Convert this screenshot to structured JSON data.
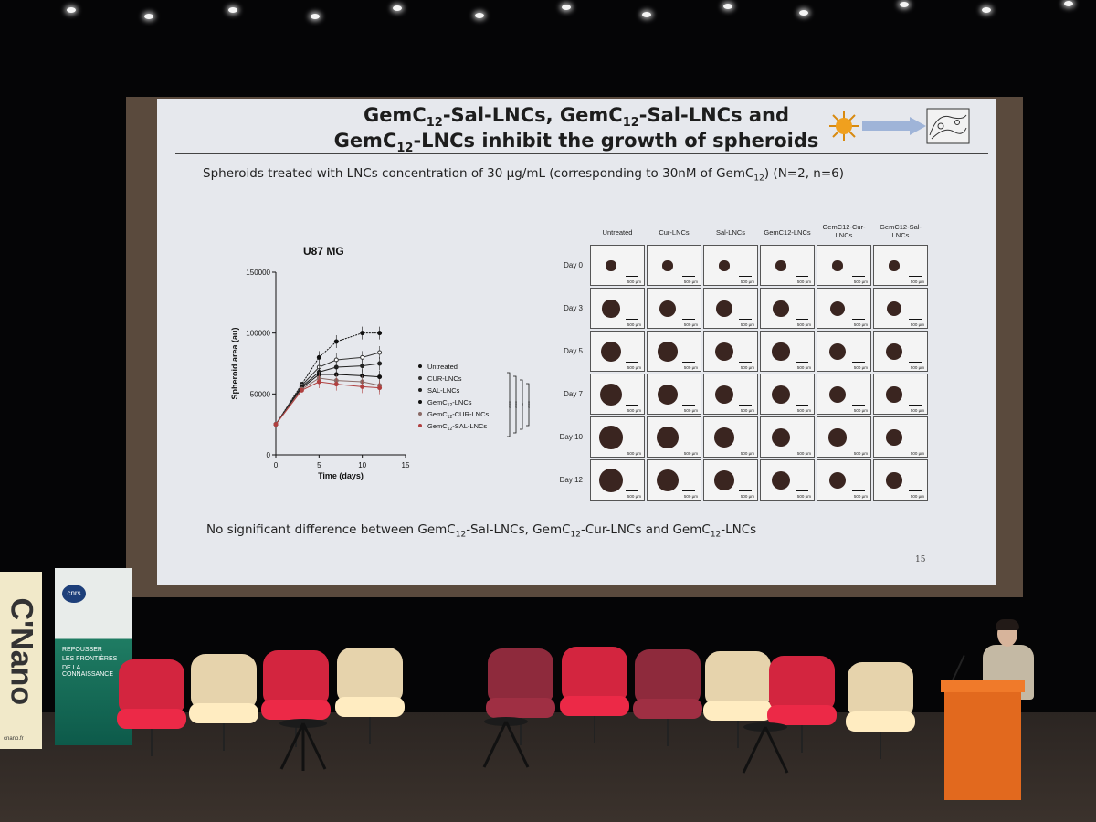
{
  "slide": {
    "title_line1_part1": "GemC",
    "title_line1_sub1": "12",
    "title_line1_part2": "-Sal-LNCs, GemC",
    "title_line1_sub2": "12",
    "title_line1_part3": "-Sal-LNCs and",
    "title_line2_part1": "GemC",
    "title_line2_sub1": "12",
    "title_line2_part2": "-LNCs inhibit the growth of spheroids",
    "subtitle_part1": "Spheroids treated with LNCs concentration of 30 µg/mL (corresponding to 30nM of GemC",
    "subtitle_sub": "12",
    "subtitle_part2": ") (N=2, n=6)",
    "footnote_p1": "No significant difference between GemC",
    "footnote_s1": "12",
    "footnote_p2": "-Sal-LNCs, GemC",
    "footnote_s2": "12",
    "footnote_p3": "-Cur-LNCs and GemC",
    "footnote_s3": "12",
    "footnote_p4": "-LNCs",
    "page_number": "15"
  },
  "chart_data": {
    "type": "line",
    "title": "U87 MG",
    "xlabel": "Time (days)",
    "ylabel": "Spheroid area (au)",
    "xlim": [
      0,
      15
    ],
    "ylim": [
      0,
      150000
    ],
    "x_ticks": [
      "0",
      "5",
      "10",
      "15"
    ],
    "y_ticks": [
      "0",
      "50000",
      "100000",
      "150000"
    ],
    "x": [
      0,
      3,
      5,
      7,
      10,
      12
    ],
    "legend_position": "right",
    "significance": [
      "****",
      "****",
      "**",
      "****"
    ],
    "series": [
      {
        "name": "Untreated",
        "values": [
          25000,
          58000,
          80000,
          93000,
          100000,
          100000
        ],
        "color": "#111111",
        "marker": "circle"
      },
      {
        "name": "CUR-LNCs",
        "values": [
          25000,
          57000,
          72000,
          78000,
          80000,
          84000
        ],
        "color": "#333333",
        "marker": "circle-open"
      },
      {
        "name": "SAL-LNCs",
        "values": [
          25000,
          56000,
          68000,
          72000,
          73000,
          75000
        ],
        "color": "#222222",
        "marker": "triangle"
      },
      {
        "name": "GemC12-LNCs",
        "values": [
          25000,
          55000,
          66000,
          66000,
          65000,
          64000
        ],
        "color": "#111111",
        "marker": "diamond"
      },
      {
        "name": "GemC12-CUR-LNCs",
        "values": [
          25000,
          54000,
          63000,
          61000,
          60000,
          57000
        ],
        "color": "#8a6a66",
        "marker": "circle"
      },
      {
        "name": "GemC12-SAL-LNCs",
        "values": [
          25000,
          53000,
          60000,
          58000,
          56000,
          55000
        ],
        "color": "#b04040",
        "marker": "circle"
      }
    ]
  },
  "legend_labels": [
    {
      "main": "Untreated",
      "sub": "",
      "tail": ""
    },
    {
      "main": "CUR-LNCs",
      "sub": "",
      "tail": ""
    },
    {
      "main": "SAL-LNCs",
      "sub": "",
      "tail": ""
    },
    {
      "main": "GemC",
      "sub": "12",
      "tail": "-LNCs"
    },
    {
      "main": "GemC",
      "sub": "12",
      "tail": "-CUR-LNCs"
    },
    {
      "main": "GemC",
      "sub": "12",
      "tail": "-SAL-LNCs"
    }
  ],
  "image_grid": {
    "columns": [
      {
        "l1": "Untreated",
        "l2": ""
      },
      {
        "l1": "Cur-LNCs",
        "l2": ""
      },
      {
        "l1": "Sal-LNCs",
        "l2": ""
      },
      {
        "l1": "GemC12-LNCs",
        "l2": ""
      },
      {
        "l1": "GemC12-Cur-",
        "l2": "LNCs"
      },
      {
        "l1": "GemC12-Sal-",
        "l2": "LNCs"
      }
    ],
    "rows": [
      "Day 0",
      "Day 3",
      "Day 5",
      "Day 7",
      "Day 10",
      "Day 12"
    ],
    "scale_label": "500 µm",
    "spheroid_size_relative": [
      [
        0.28,
        0.28,
        0.28,
        0.28,
        0.28,
        0.28
      ],
      [
        0.48,
        0.46,
        0.44,
        0.44,
        0.42,
        0.42
      ],
      [
        0.55,
        0.54,
        0.5,
        0.48,
        0.46,
        0.46
      ],
      [
        0.6,
        0.57,
        0.52,
        0.5,
        0.47,
        0.44
      ],
      [
        0.64,
        0.59,
        0.54,
        0.5,
        0.48,
        0.44
      ],
      [
        0.66,
        0.6,
        0.54,
        0.5,
        0.46,
        0.44
      ]
    ]
  },
  "banners": {
    "left_text": "C'Nano",
    "left_url": "cnano.fr",
    "right_logo": "cnrs",
    "right_line1": "REPOUSSER",
    "right_line2": "LES FRONTIÈRES",
    "right_line3": "DE LA CONNAISSANCE"
  },
  "colors": {
    "chair_red": "#d3253f",
    "chair_beige": "#e6d3ac",
    "chair_wine": "#8e2a3c",
    "podium": "#e2691e"
  }
}
